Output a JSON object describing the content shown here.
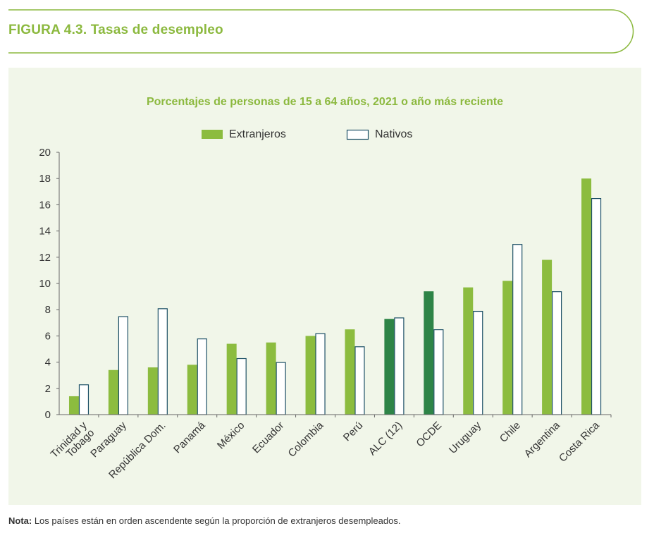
{
  "figure_title": "FIGURA 4.3. Tasas de desempleo",
  "note": {
    "label": "Nota:",
    "text": " Los países están en orden ascendente según la proporción de extranjeros desempleados."
  },
  "colors": {
    "extranjeros": "#8cbc3f",
    "extranjeros_highlight": "#2e8447",
    "nativos_stroke": "#1d5066",
    "nativos_fill": "#ffffff",
    "title_green": "#8cb93f",
    "axis": "#666666"
  },
  "chart_data": {
    "type": "bar",
    "title": "Porcentajes de personas de 15 a 64 años, 2021 o año más reciente",
    "xlabel": "",
    "ylabel": "",
    "ylim": [
      0,
      20
    ],
    "yticks": [
      0,
      2,
      4,
      6,
      8,
      10,
      12,
      14,
      16,
      18,
      20
    ],
    "legend_position": "top-center",
    "categories": [
      "Trinidad y Tobago",
      "Paraguay",
      "República Dom.",
      "Panamá",
      "México",
      "Ecuador",
      "Colombia",
      "Perú",
      "ALC (12)",
      "OCDE",
      "Uruguay",
      "Chile",
      "Argentina",
      "Costa Rica"
    ],
    "highlight_categories": [
      "ALC (12)",
      "OCDE"
    ],
    "series": [
      {
        "name": "Extranjeros",
        "values": [
          1.4,
          3.4,
          3.6,
          3.8,
          5.4,
          5.5,
          6.0,
          6.5,
          7.3,
          9.4,
          9.7,
          10.2,
          11.8,
          18.0
        ]
      },
      {
        "name": "Nativos",
        "values": [
          2.3,
          7.5,
          8.1,
          5.8,
          4.3,
          4.0,
          6.2,
          5.2,
          7.4,
          6.5,
          7.9,
          13.0,
          9.4,
          16.5
        ]
      }
    ]
  }
}
